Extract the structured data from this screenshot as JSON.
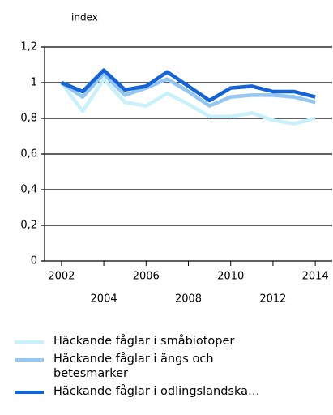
{
  "chart_data": {
    "type": "line",
    "y_label": "index",
    "x": [
      2002,
      2003,
      2004,
      2005,
      2006,
      2007,
      2008,
      2009,
      2010,
      2011,
      2012,
      2013,
      2014
    ],
    "series": [
      {
        "name": "Häckande fåglar i småbiotoper",
        "color": "#c9f1fb",
        "values": [
          1.0,
          0.84,
          1.02,
          0.89,
          0.87,
          0.94,
          0.88,
          0.81,
          0.81,
          0.83,
          0.79,
          0.77,
          0.8
        ]
      },
      {
        "name": "Häckande fåglar i ängs och betesmarker",
        "color": "#93c6f0",
        "values": [
          1.0,
          0.92,
          1.05,
          0.93,
          0.97,
          1.02,
          0.95,
          0.87,
          0.92,
          0.93,
          0.93,
          0.92,
          0.89
        ]
      },
      {
        "name": "Häckande fåglar i odlingslandska…",
        "color": "#1464d8",
        "values": [
          1.0,
          0.95,
          1.07,
          0.96,
          0.98,
          1.06,
          0.98,
          0.9,
          0.97,
          0.98,
          0.95,
          0.95,
          0.92
        ]
      }
    ],
    "xlim": [
      2001.2,
      2014.8
    ],
    "xticks": [
      2002,
      2004,
      2006,
      2008,
      2010,
      2012,
      2014
    ],
    "ylim": [
      0,
      1.2
    ],
    "yticks": [
      0,
      {
        "value": 0.2,
        "label": "0,2"
      },
      {
        "value": 0.4,
        "label": "0,4"
      },
      {
        "value": 0.6,
        "label": "0,6"
      },
      {
        "value": 0.8,
        "label": "0,8"
      },
      1,
      {
        "value": 1.2,
        "label": "1,2"
      }
    ],
    "grid": true
  }
}
